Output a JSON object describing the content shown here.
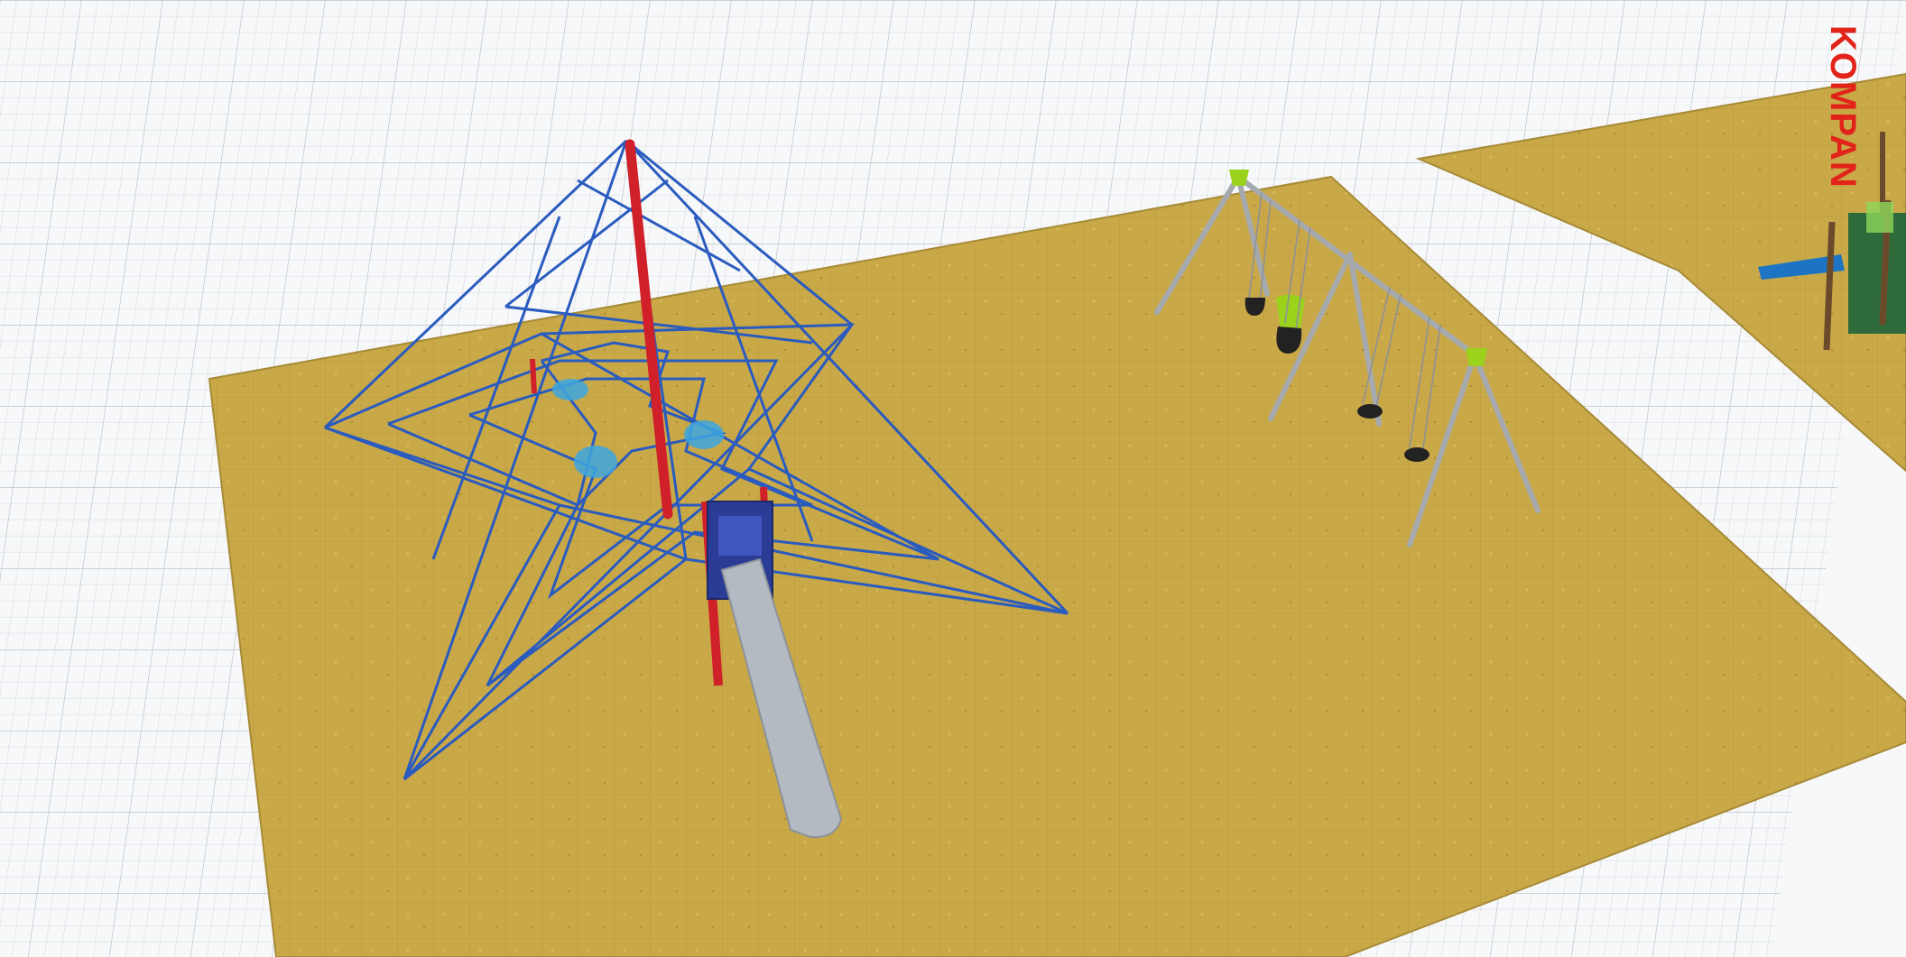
{
  "brand": {
    "logo_text": "KOMPAN",
    "logo_color": "#e2231a"
  },
  "colors": {
    "ground_grid": "#f7f8f9",
    "grid_line": "#c9ced3",
    "surface": "#c9a848",
    "net_rope": "#2a5bbf",
    "mast": "#d0202a",
    "slide": "#b4bac1",
    "tower_panel": "#2b3c96",
    "swing_frame": "#a6aaae",
    "swing_accent": "#9bd21c",
    "swing_seat": "#222222"
  },
  "scene": {
    "objects": [
      {
        "name": "pyramid-rope-net",
        "label": ""
      },
      {
        "name": "slide-tower",
        "label": ""
      },
      {
        "name": "double-swing-set",
        "label": ""
      },
      {
        "name": "play-tower-partial",
        "label": ""
      }
    ]
  }
}
